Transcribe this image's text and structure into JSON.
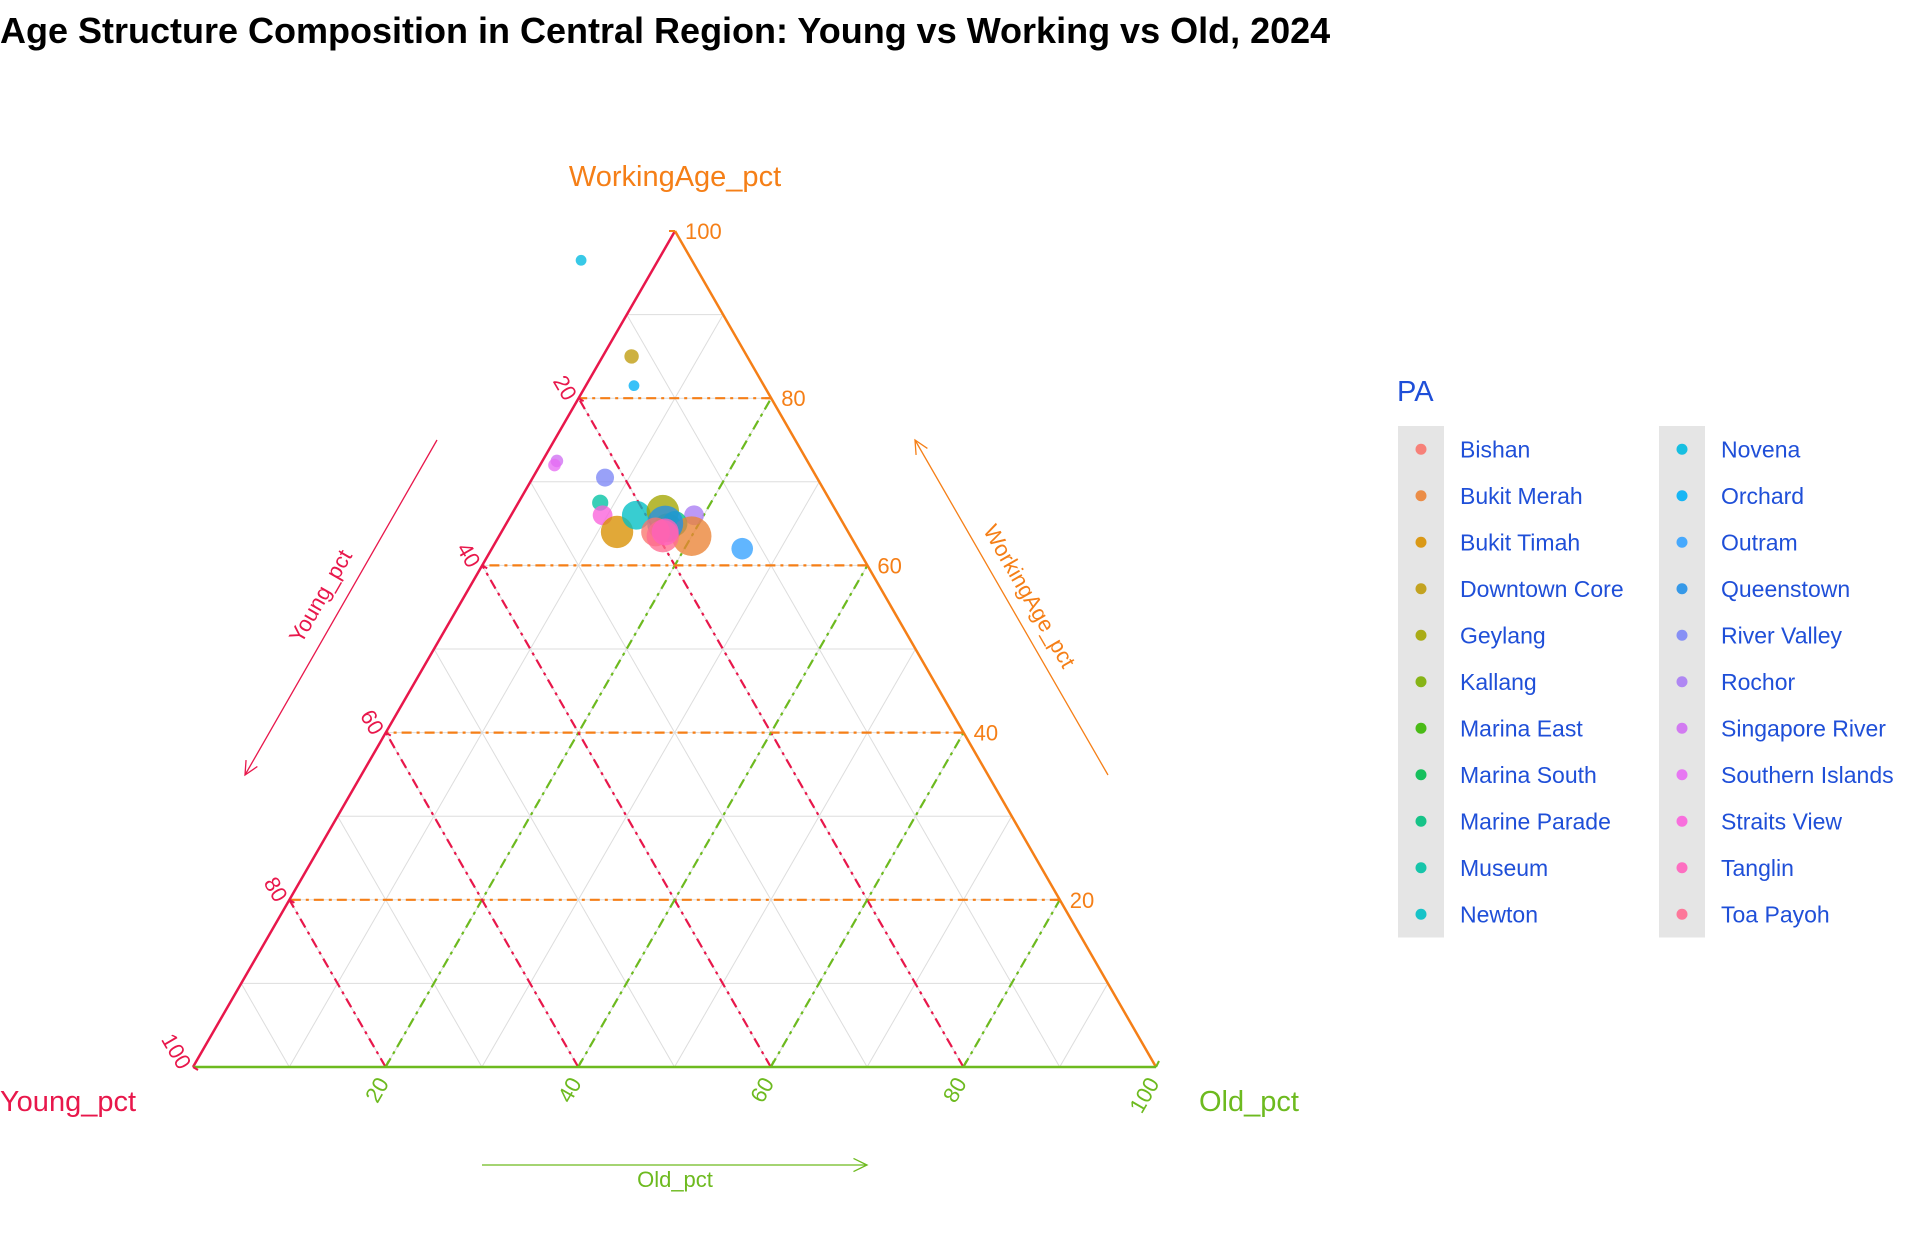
{
  "chart_data": {
    "type": "scatter",
    "subtype": "ternary",
    "title": "Age Structure Composition in Central Region: Young vs Working vs Old, 2024",
    "axes": {
      "young": {
        "label": "Young_pct",
        "arrow_label": "Young_pct",
        "color": "#E8174B",
        "ticks": [
          20,
          40,
          60,
          80,
          100
        ]
      },
      "working": {
        "label": "WorkingAge_pct",
        "arrow_label": "WorkingAge_pct",
        "color": "#F57F17",
        "ticks": [
          20,
          40,
          60,
          80,
          100
        ]
      },
      "old": {
        "label": "Old_pct",
        "arrow_label": "Old_pct",
        "color": "#6DBA1F",
        "ticks": [
          20,
          40,
          60,
          80,
          100
        ]
      }
    },
    "range": [
      0,
      100
    ],
    "grid": true,
    "legend": {
      "title": "PA",
      "position": "right",
      "text_color": "#1F4FD8",
      "columns": 2,
      "items": [
        {
          "name": "Bishan",
          "color": "#F8766D"
        },
        {
          "name": "Bukit Merah",
          "color": "#EB8335"
        },
        {
          "name": "Bukit Timah",
          "color": "#D89000"
        },
        {
          "name": "Downtown Core",
          "color": "#BF9B0B"
        },
        {
          "name": "Geylang",
          "color": "#A3A500"
        },
        {
          "name": "Kallang",
          "color": "#7CAE00"
        },
        {
          "name": "Marina East",
          "color": "#39B600"
        },
        {
          "name": "Marina South",
          "color": "#00BB4E"
        },
        {
          "name": "Marine Parade",
          "color": "#00BF7D"
        },
        {
          "name": "Museum",
          "color": "#00C1A3"
        },
        {
          "name": "Newton",
          "color": "#00BFC4"
        },
        {
          "name": "Novena",
          "color": "#00BAE0"
        },
        {
          "name": "Orchard",
          "color": "#00B0F6"
        },
        {
          "name": "Outram",
          "color": "#35A2FF"
        },
        {
          "name": "Queenstown",
          "color": "#2290E8"
        },
        {
          "name": "River Valley",
          "color": "#7C86F6"
        },
        {
          "name": "Rochor",
          "color": "#A97CF4"
        },
        {
          "name": "Singapore River",
          "color": "#CF6FF2"
        },
        {
          "name": "Southern Islands",
          "color": "#E76BF3"
        },
        {
          "name": "Straits View",
          "color": "#FA62DB"
        },
        {
          "name": "Tanglin",
          "color": "#FF62BC"
        },
        {
          "name": "Toa Payoh",
          "color": "#FF6C91"
        }
      ]
    },
    "points": [
      {
        "pa": "Novena",
        "young": 11.5,
        "working": 96.5,
        "old": -8.0,
        "size": 6
      },
      {
        "pa": "Downtown Core",
        "young": 12.0,
        "working": 85.0,
        "old": 3.0,
        "size": 8
      },
      {
        "pa": "Orchard",
        "young": 13.5,
        "working": 81.5,
        "old": 5.0,
        "size": 6
      },
      {
        "pa": "Singapore River",
        "young": 26.0,
        "working": 72.5,
        "old": 1.5,
        "size": 7
      },
      {
        "pa": "Southern Islands",
        "young": 26.5,
        "working": 72.0,
        "old": 1.5,
        "size": 7
      },
      {
        "pa": "River Valley",
        "young": 22.0,
        "working": 70.5,
        "old": 7.5,
        "size": 10
      },
      {
        "pa": "Museum",
        "young": 24.0,
        "working": 67.5,
        "old": 8.5,
        "size": 9
      },
      {
        "pa": "Straits View",
        "young": 24.5,
        "working": 66.0,
        "old": 9.5,
        "size": 11
      },
      {
        "pa": "Bukit Timah",
        "young": 24.0,
        "working": 64.0,
        "old": 12.0,
        "size": 18
      },
      {
        "pa": "Newton",
        "young": 21.0,
        "working": 66.0,
        "old": 13.0,
        "size": 16
      },
      {
        "pa": "Geylang",
        "young": 18.0,
        "working": 66.5,
        "old": 15.5,
        "size": 18
      },
      {
        "pa": "Rochor",
        "young": 15.0,
        "working": 66.0,
        "old": 19.0,
        "size": 11
      },
      {
        "pa": "Kallang",
        "young": 18.5,
        "working": 64.5,
        "old": 17.0,
        "size": 16
      },
      {
        "pa": "Marine Parade",
        "young": 17.5,
        "working": 65.0,
        "old": 17.5,
        "size": 14
      },
      {
        "pa": "Bukit Merah",
        "young": 16.5,
        "working": 63.5,
        "old": 20.0,
        "size": 22
      },
      {
        "pa": "Queenstown",
        "young": 18.5,
        "working": 65.0,
        "old": 16.5,
        "size": 20
      },
      {
        "pa": "Bishan",
        "young": 20.0,
        "working": 64.0,
        "old": 16.0,
        "size": 16
      },
      {
        "pa": "Toa Payoh",
        "young": 19.5,
        "working": 63.5,
        "old": 17.0,
        "size": 18
      },
      {
        "pa": "Tanglin",
        "young": 19.0,
        "working": 64.0,
        "old": 17.0,
        "size": 15
      },
      {
        "pa": "Outram",
        "young": 12.0,
        "working": 62.0,
        "old": 26.0,
        "size": 12
      }
    ]
  }
}
